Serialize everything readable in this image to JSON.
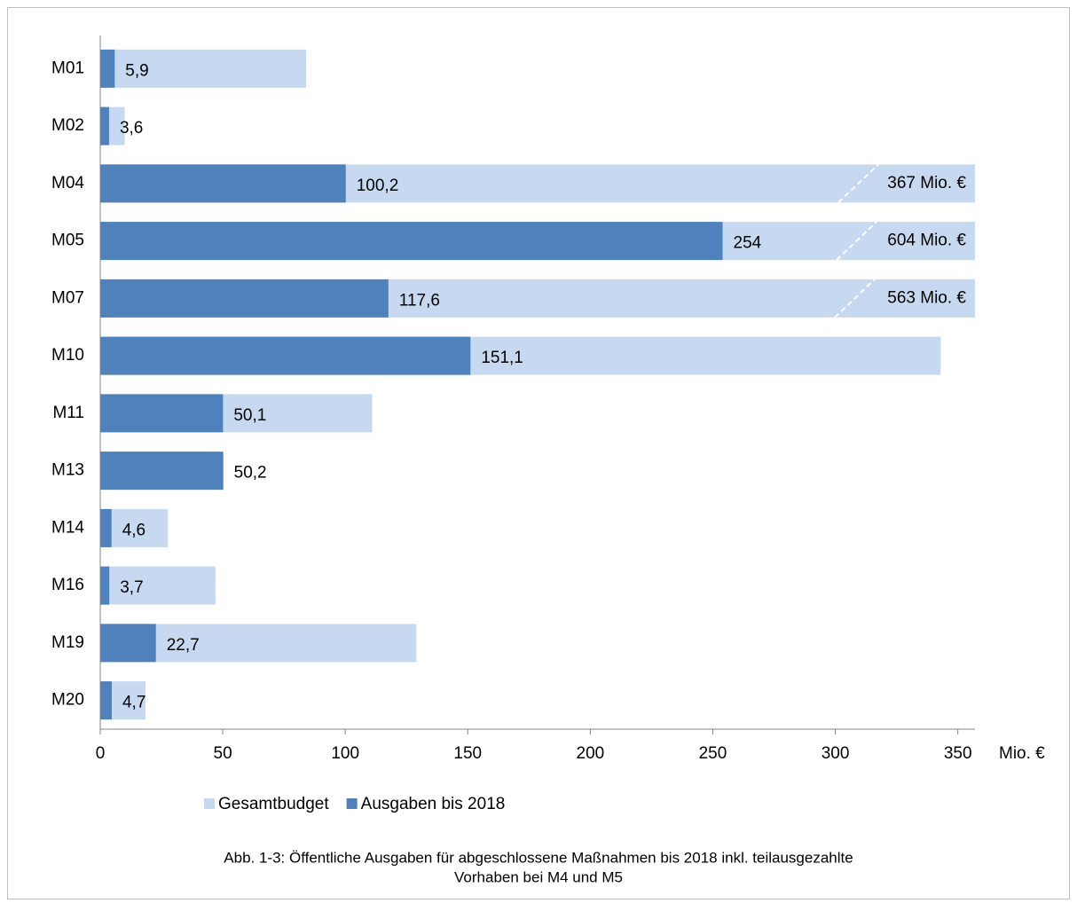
{
  "chart_data": {
    "type": "bar",
    "orientation": "horizontal",
    "caption": [
      "Abb. 1-3: Öffentliche Ausgaben für abgeschlossene Maßnahmen bis 2018 inkl. teilausgezahlte",
      "Vorhaben bei M4 und M5"
    ],
    "x_label": "Mio. €",
    "categories": [
      "M01",
      "M02",
      "M04",
      "M05",
      "M07",
      "M10",
      "M11",
      "M13",
      "M14",
      "M16",
      "M19",
      "M20"
    ],
    "series": [
      {
        "name": "Gesamtbudget",
        "color": "#c6d9f1",
        "values": [
          84,
          10,
          367,
          604,
          563,
          343,
          111,
          50.2,
          27.6,
          47,
          129,
          18.5
        ],
        "value_labels": [
          null,
          null,
          "367 Mio. €",
          "604 Mio. €",
          "563 Mio. €",
          null,
          null,
          null,
          null,
          null,
          null,
          null
        ]
      },
      {
        "name": "Ausgaben bis 2018",
        "color": "#4f81bd",
        "values": [
          5.9,
          3.6,
          100.2,
          254,
          117.6,
          151.1,
          50.1,
          50.2,
          4.6,
          3.7,
          22.7,
          4.7
        ],
        "value_labels": [
          "5,9",
          "3,6",
          "100,2",
          "254",
          "117,6",
          "151,1",
          "50,1",
          "50,2",
          "4,6",
          "3,7",
          "22,7",
          "4,7"
        ]
      }
    ],
    "xlim": [
      0,
      357
    ],
    "xticks": [
      0,
      50,
      100,
      150,
      200,
      250,
      300,
      350
    ],
    "legend": "bottom"
  }
}
